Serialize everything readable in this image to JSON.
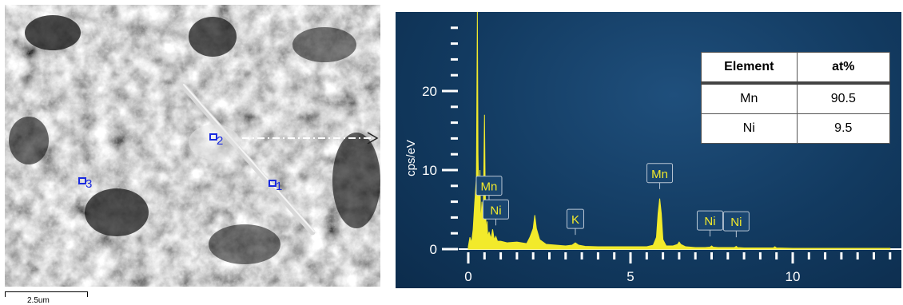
{
  "sem_image": {
    "markers": [
      {
        "label": "2"
      },
      {
        "label": "1"
      },
      {
        "label": "3"
      }
    ],
    "scale_bar_label": "2.5um",
    "marker_color": "#1a2adf"
  },
  "chart_data": {
    "type": "line",
    "ylabel": "cps/eV",
    "xlabel": "",
    "xlim": [
      0,
      13
    ],
    "ylim": [
      0,
      30
    ],
    "x_ticks": [
      "0",
      "5",
      "10"
    ],
    "y_ticks": [
      "0",
      "10",
      "20"
    ],
    "series": [
      {
        "x": [
          0.0,
          0.05,
          0.1,
          0.15,
          0.2,
          0.25,
          0.28,
          0.3,
          0.33,
          0.36,
          0.38,
          0.42,
          0.46,
          0.5,
          0.52,
          0.55,
          0.58,
          0.6,
          0.64,
          0.7,
          0.75,
          0.8,
          0.85,
          0.9,
          1.0,
          1.2,
          1.5,
          1.8,
          1.9,
          2.0,
          2.05,
          2.1,
          2.2,
          2.4,
          2.7,
          3.0,
          3.2,
          3.3,
          3.4,
          3.6,
          4.0,
          4.5,
          5.0,
          5.5,
          5.7,
          5.8,
          5.85,
          5.9,
          5.95,
          6.0,
          6.1,
          6.3,
          6.45,
          6.5,
          6.55,
          6.7,
          7.0,
          7.3,
          7.45,
          7.5,
          7.55,
          7.7,
          8.0,
          8.2,
          8.26,
          8.3,
          8.5,
          9.0,
          9.4,
          9.45,
          9.5,
          10.0,
          11.0,
          12.0,
          13.0
        ],
        "y": [
          0.3,
          1.5,
          0.8,
          2.5,
          6.0,
          9.0,
          30.0,
          12.0,
          5.0,
          10.0,
          3.0,
          6.0,
          3.5,
          17.0,
          8.0,
          2.2,
          3.5,
          1.5,
          2.2,
          1.3,
          2.5,
          1.2,
          1.6,
          1.0,
          1.0,
          0.8,
          0.9,
          0.7,
          1.5,
          2.6,
          4.3,
          2.6,
          1.2,
          0.6,
          0.5,
          0.4,
          0.5,
          0.8,
          0.5,
          0.35,
          0.3,
          0.3,
          0.3,
          0.3,
          0.5,
          1.5,
          4.5,
          6.4,
          4.5,
          1.2,
          0.4,
          0.4,
          0.6,
          0.9,
          0.6,
          0.3,
          0.2,
          0.2,
          0.25,
          0.4,
          0.25,
          0.2,
          0.2,
          0.2,
          0.35,
          0.2,
          0.15,
          0.15,
          0.15,
          0.3,
          0.15,
          0.1,
          0.1,
          0.1,
          0.1
        ],
        "color": "#f2ea2b"
      }
    ],
    "peak_labels": [
      {
        "text": "Mn",
        "x": 0.64,
        "y": 6.0
      },
      {
        "text": "Ni",
        "x": 0.85,
        "y": 3.0
      },
      {
        "text": "K",
        "x": 3.3,
        "y": 1.8
      },
      {
        "text": "Mn",
        "x": 5.9,
        "y": 7.6
      },
      {
        "text": "Ni",
        "x": 7.45,
        "y": 1.6
      },
      {
        "text": "Ni",
        "x": 8.26,
        "y": 1.5
      }
    ],
    "background_color": "#164470",
    "axis_color": "#ffffff"
  },
  "table": {
    "headers": [
      "Element",
      "at%"
    ],
    "rows": [
      [
        "Mn",
        "90.5"
      ],
      [
        "Ni",
        "9.5"
      ]
    ]
  }
}
